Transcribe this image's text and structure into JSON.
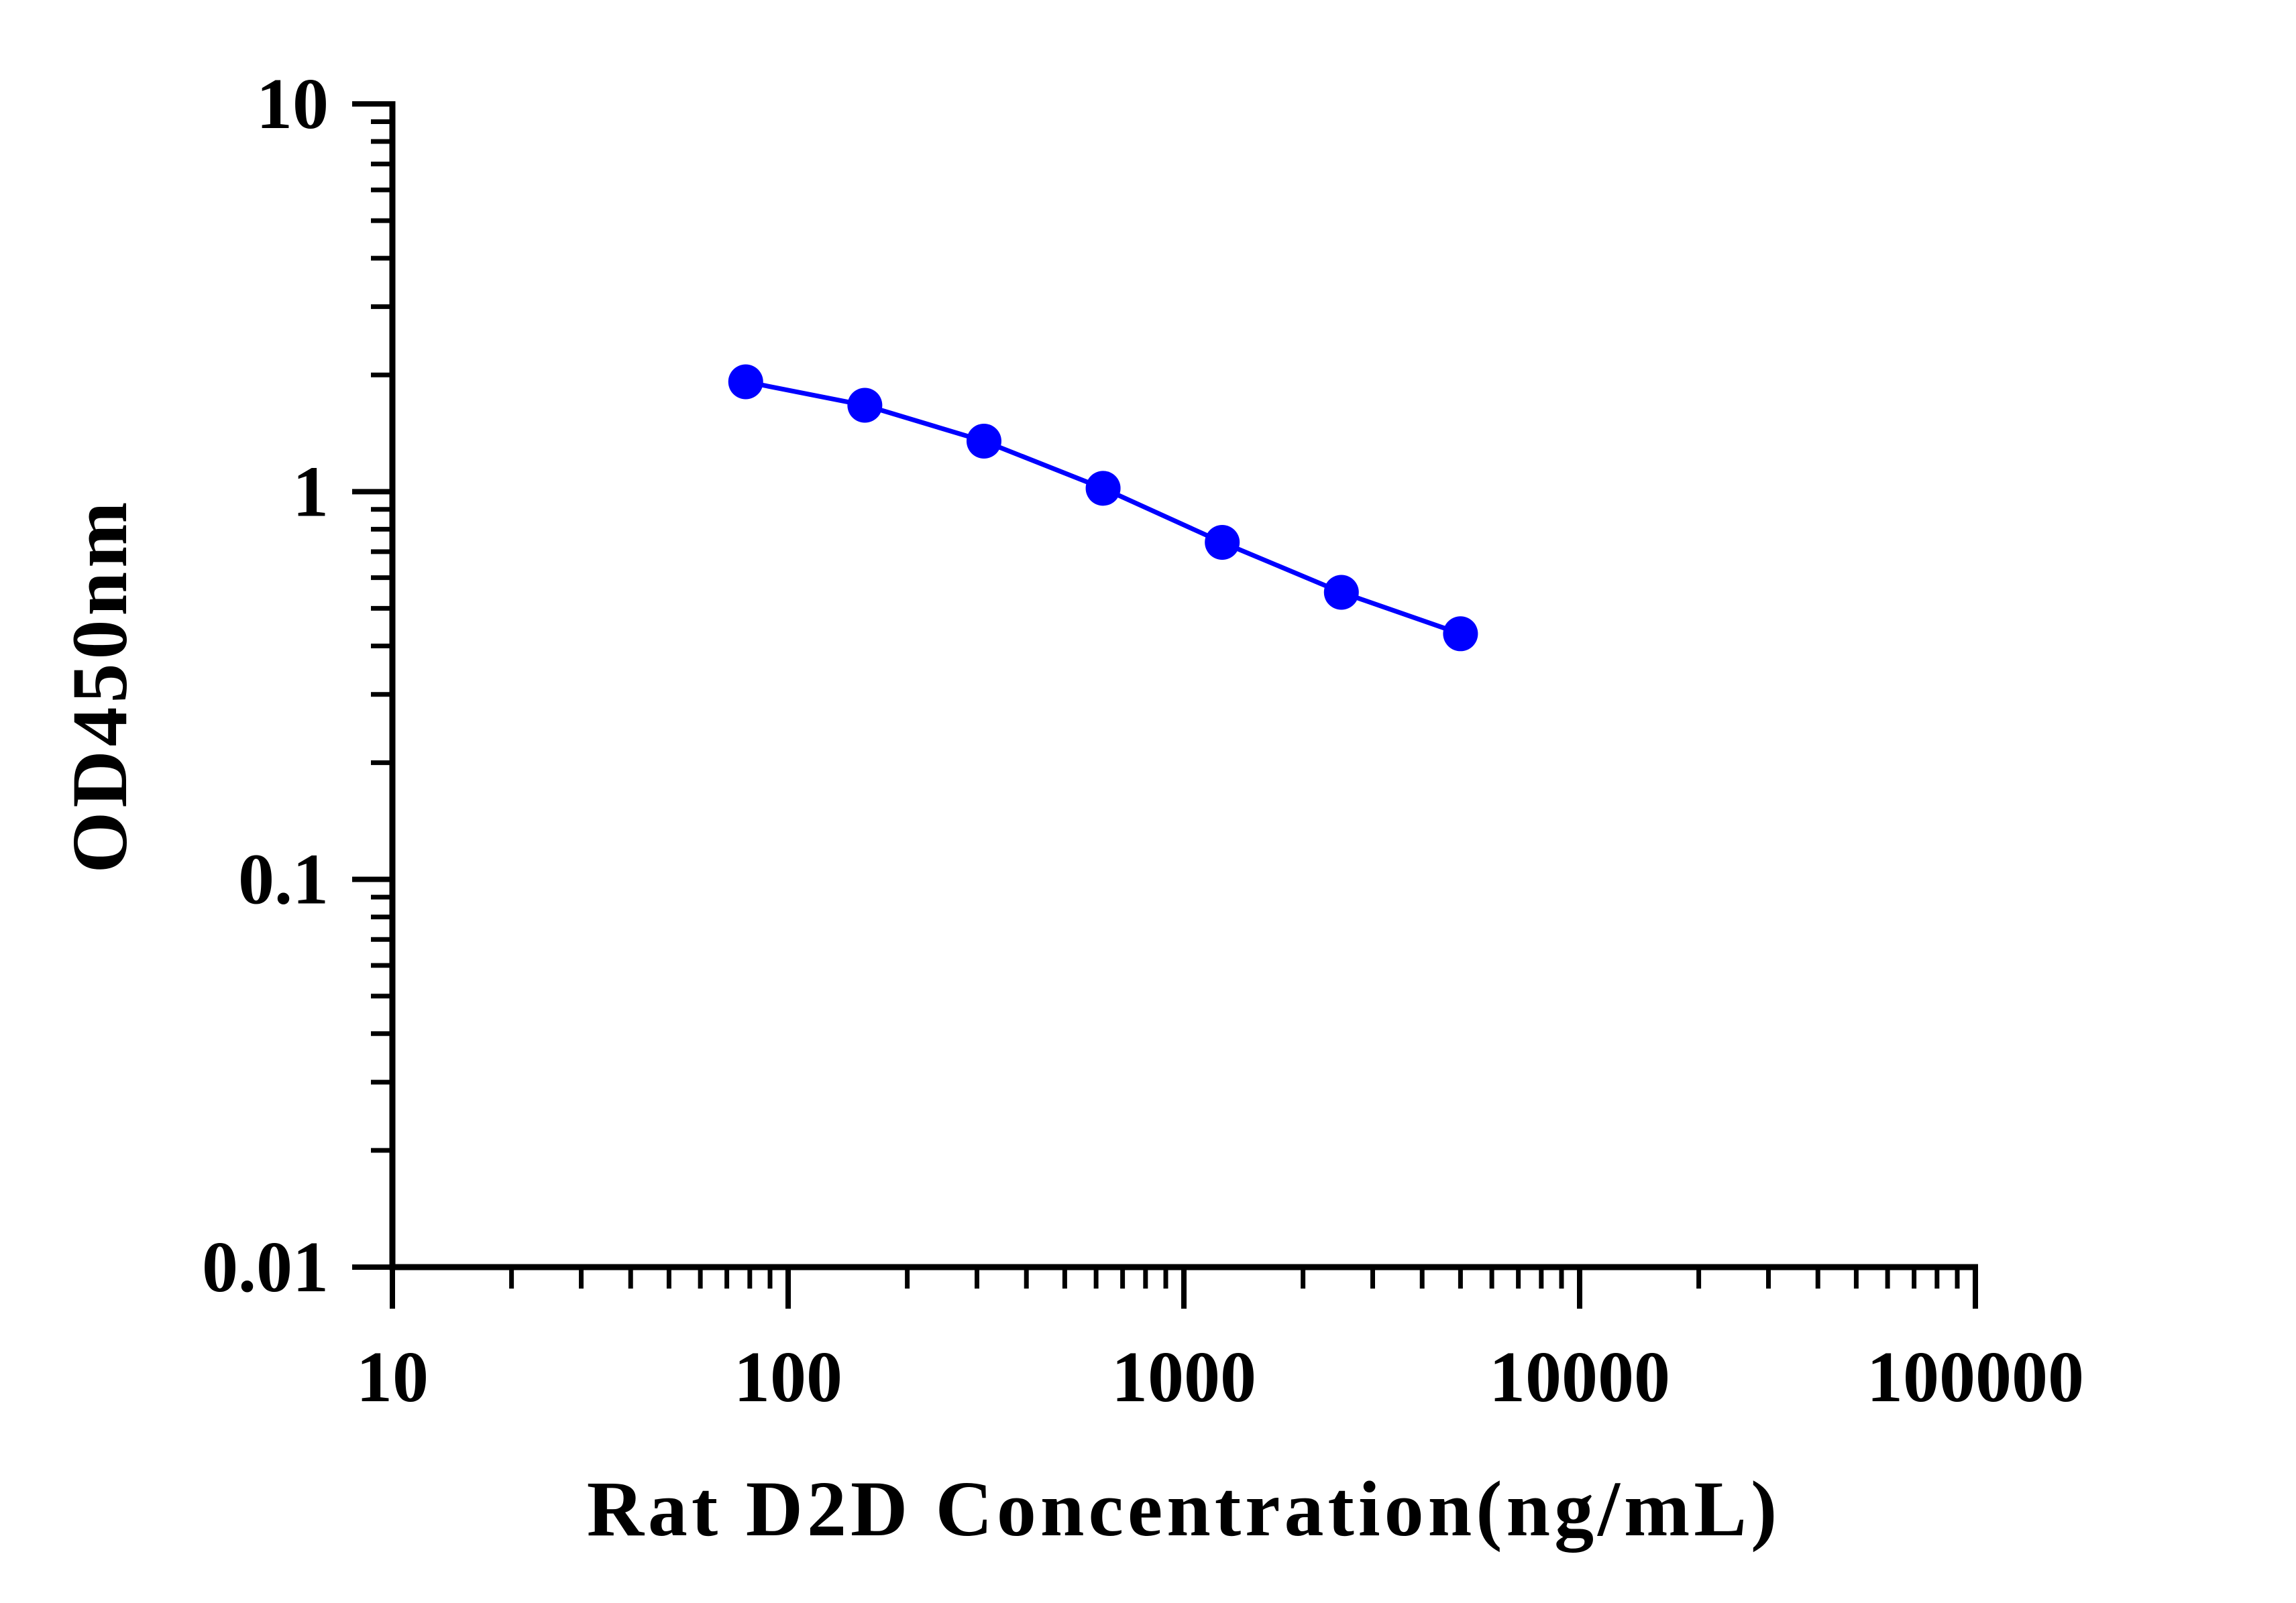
{
  "chart_data": {
    "type": "line",
    "title": "",
    "xlabel": "Rat D2D Concentration(ng/mL)",
    "ylabel": "OD450nm",
    "x_scale": "log",
    "y_scale": "log",
    "xlim": [
      10,
      100000
    ],
    "ylim": [
      0.01,
      10
    ],
    "x_ticks": [
      "10",
      "100",
      "1000",
      "10000",
      "100000"
    ],
    "y_ticks": [
      "0.01",
      "0.1",
      "1",
      "10"
    ],
    "grid": false,
    "legend": "none",
    "series": [
      {
        "color": "#0000ff",
        "marker": "circle",
        "x": [
          78.125,
          156.25,
          312.5,
          625,
          1250,
          2500,
          5000
        ],
        "y": [
          1.92,
          1.67,
          1.35,
          1.02,
          0.74,
          0.55,
          0.43
        ]
      }
    ]
  }
}
